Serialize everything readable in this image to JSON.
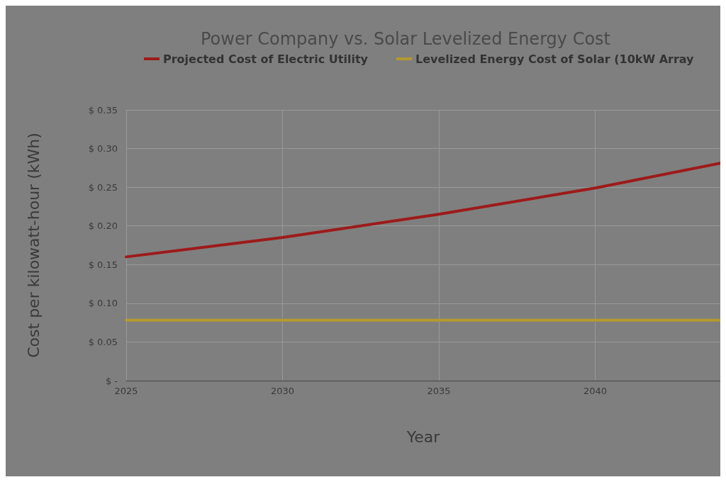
{
  "chart_data": {
    "type": "line",
    "title": "Power Company vs. Solar Levelized Energy Cost",
    "xlabel": "Year",
    "ylabel": "Cost per kilowatt-hour (kWh)",
    "x": [
      2025,
      2030,
      2035,
      2040,
      2044
    ],
    "series": [
      {
        "name": "Projected Cost of Electric Utility",
        "color": "#9e1a1a",
        "values": [
          0.16,
          0.185,
          0.215,
          0.249,
          0.281
        ]
      },
      {
        "name": "Levelized Energy Cost of Solar (10kW Array",
        "color": "#b39a2e",
        "values": [
          0.078,
          0.078,
          0.078,
          0.078,
          0.078
        ]
      }
    ],
    "xlim": [
      2025,
      2044
    ],
    "xticks": [
      2025,
      2030,
      2035,
      2040
    ],
    "ylim": [
      0,
      0.35
    ],
    "yticks": [
      {
        "value": 0,
        "label": "$ -"
      },
      {
        "value": 0.05,
        "label": "$ 0.05"
      },
      {
        "value": 0.1,
        "label": "$ 0.10"
      },
      {
        "value": 0.15,
        "label": "$ 0.15"
      },
      {
        "value": 0.2,
        "label": "$ 0.20"
      },
      {
        "value": 0.25,
        "label": "$ 0.25"
      },
      {
        "value": 0.3,
        "label": "$ 0.30"
      },
      {
        "value": 0.35,
        "label": "$ 0.35"
      }
    ],
    "grid": true,
    "legend": "top",
    "marker": "none",
    "line_style": "solid"
  }
}
